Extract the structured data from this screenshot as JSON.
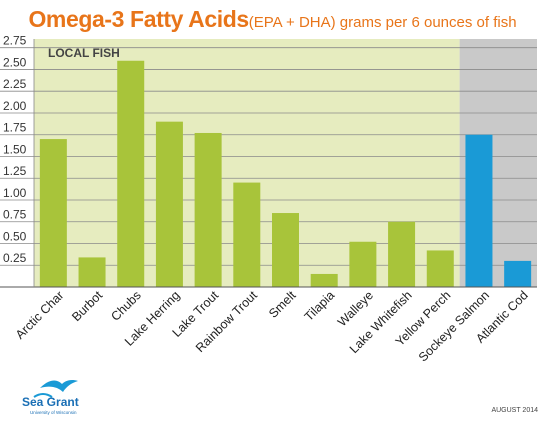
{
  "title": {
    "main": "Omega-3 Fatty Acids",
    "sub": "(EPA + DHA) grams per 6 ounces of fish"
  },
  "region_label": "LOCAL FISH",
  "footer": {
    "logo_name": "Sea Grant",
    "logo_sub": "University of Wisconsin",
    "date": "AUGUST 2014"
  },
  "colors": {
    "local_bar": "#a8c43a",
    "other_bar": "#1a9ad6",
    "local_bg": "#e6ecbf",
    "other_bg": "#c9c9c9",
    "title": "#e8751a"
  },
  "chart_data": {
    "type": "bar",
    "title": "Omega-3 Fatty Acids (EPA + DHA) grams per 6 ounces of fish",
    "xlabel": "",
    "ylabel": "",
    "ylim": [
      0,
      2.85
    ],
    "yticks": [
      "0.25",
      "0.50",
      "0.75",
      "1.00",
      "1.25",
      "1.50",
      "1.75",
      "2.00",
      "2.25",
      "2.50",
      "2.75"
    ],
    "grid": true,
    "categories": [
      "Arctic Char",
      "Burbot",
      "Chubs",
      "Lake Herring",
      "Lake Trout",
      "Rainbow Trout",
      "Smelt",
      "Tilapia",
      "Walleye",
      "Lake Whitefish",
      "Yellow Perch",
      "Sockeye Salmon",
      "Atlantic Cod"
    ],
    "values": [
      1.7,
      0.34,
      2.6,
      1.9,
      1.77,
      1.2,
      0.85,
      0.15,
      0.52,
      0.75,
      0.42,
      1.75,
      0.3
    ],
    "groups": [
      "local",
      "local",
      "local",
      "local",
      "local",
      "local",
      "local",
      "local",
      "local",
      "local",
      "local",
      "other",
      "other"
    ],
    "local_count": 11
  }
}
